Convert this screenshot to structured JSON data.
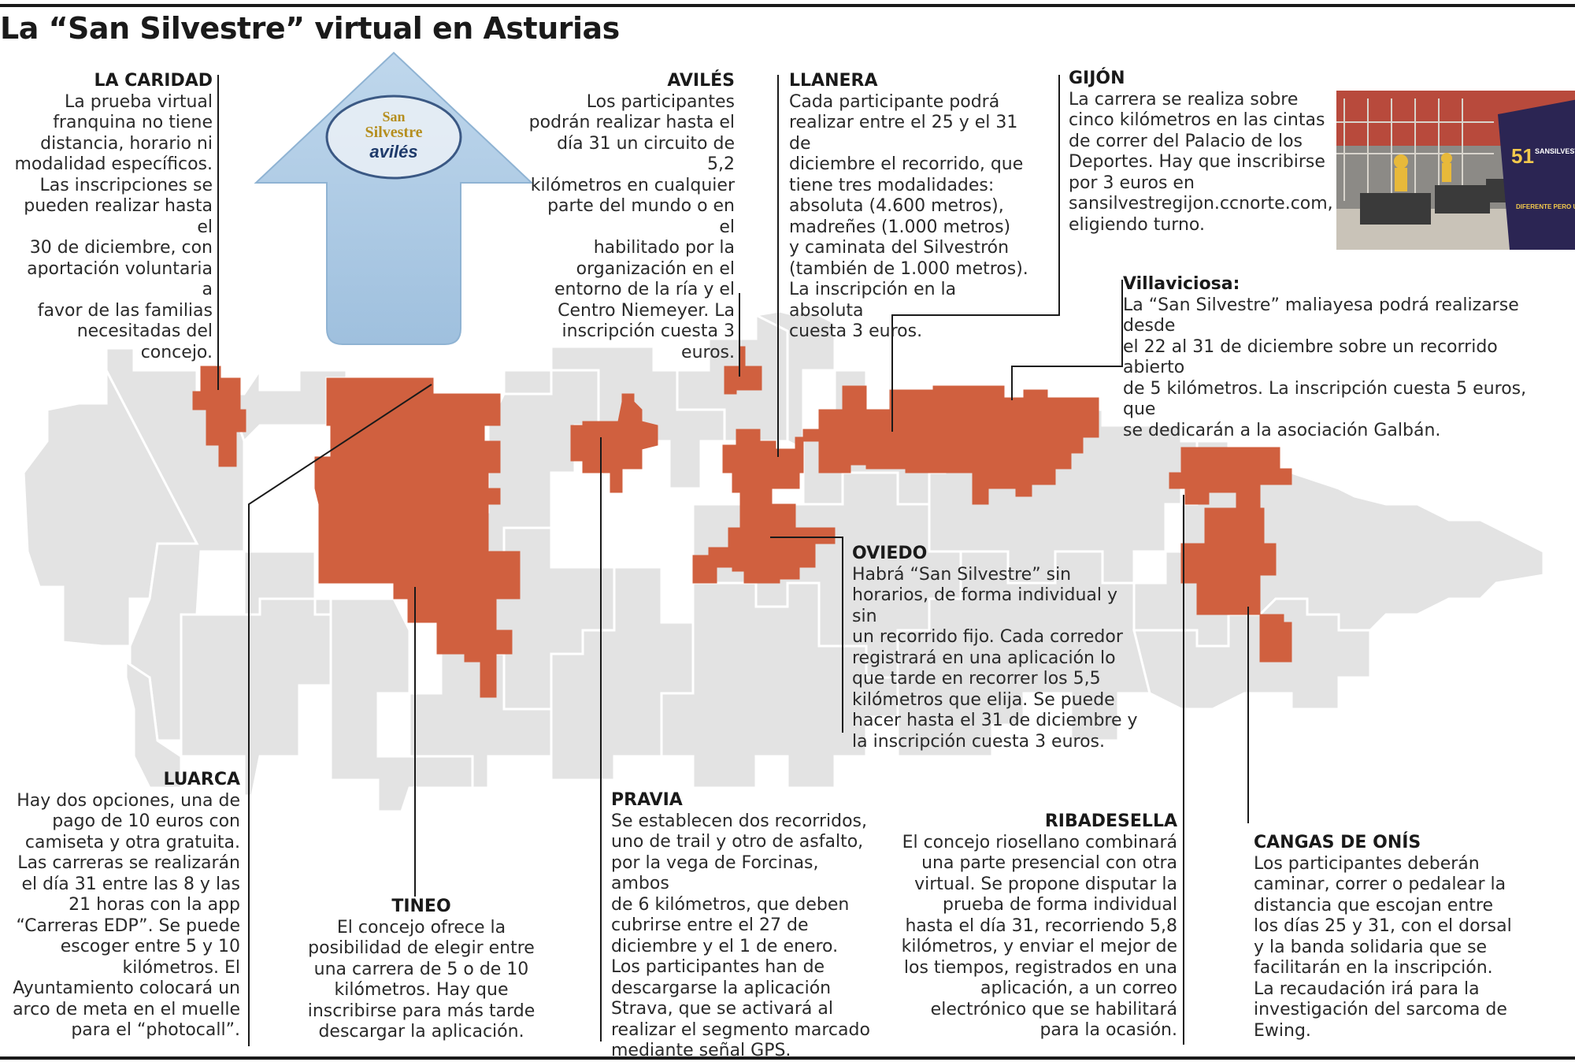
{
  "title": "La “San Silvestre” virtual en Asturias",
  "colors": {
    "highlight": "#D0603F",
    "municipality": "#E3E3E3",
    "border": "#FFFFFF",
    "line": "#1a1a1a"
  },
  "sign": {
    "line1": "San",
    "line2": "Silvestre",
    "line3": "avilés"
  },
  "photo": {
    "number": "51",
    "word": "SANSILVESTRE",
    "slogan": "DIFERENTE PERO ÚNICA"
  },
  "callouts": {
    "la_caridad": {
      "name": "LA CARIDAD",
      "text": "La prueba virtual\nfranquina no tiene\ndistancia, horario ni\nmodalidad específicos.\nLas inscripciones se\npueden realizar hasta el\n30 de diciembre, con\naportación voluntaria a\nfavor de las familias\nnecesitadas del concejo."
    },
    "aviles": {
      "name": "AVILÉS",
      "text": "Los participantes\npodrán realizar hasta el\ndía 31 un circuito de 5,2\nkilómetros en cualquier\nparte del mundo o en el\nhabilitado por la\norganización en el\nentorno de la ría y el\nCentro Niemeyer. La\ninscripción cuesta 3\neuros."
    },
    "llanera": {
      "name": "LLANERA",
      "text": "Cada participante podrá\nrealizar entre el 25 y el 31 de\ndiciembre el recorrido, que\ntiene tres modalidades:\nabsoluta (4.600 metros),\nmadreñes (1.000 metros)\ny caminata del Silvestrón\n(también de 1.000 metros).\nLa inscripción en la absoluta\ncuesta 3 euros."
    },
    "gijon": {
      "name": "GIJÓN",
      "text": "La carrera se realiza sobre\ncinco kilómetros en las cintas\nde correr del Palacio de los\nDeportes. Hay que inscribirse\npor 3 euros en\nsansilvestregijon.ccnorte.com,\neligiendo turno."
    },
    "villaviciosa": {
      "name": "Villaviciosa:",
      "text": "La “San Silvestre” maliayesa podrá realizarse desde\nel 22 al 31 de diciembre sobre un recorrido abierto\nde 5 kilómetros. La inscripción cuesta 5 euros, que\nse dedicarán a la asociación Galbán."
    },
    "oviedo": {
      "name": "OVIEDO",
      "text": "Habrá “San Silvestre” sin\nhorarios, de forma individual y sin\nun recorrido fijo. Cada corredor\nregistrará en una aplicación lo\nque tarde en recorrer los 5,5\nkilómetros que elija. Se puede\nhacer hasta el 31 de diciembre y\nla inscripción cuesta 3 euros."
    },
    "luarca": {
      "name": "LUARCA",
      "text": "Hay dos opciones, una de\npago de 10 euros con\ncamiseta y otra gratuita.\nLas carreras se realizarán\nel día 31 entre las 8 y las\n21 horas con la app\n“Carreras EDP”. Se puede\nescoger entre 5 y 10\nkilómetros. El\nAyuntamiento colocará un\narco de meta en el muelle\npara el “photocall”."
    },
    "tineo": {
      "name": "TINEO",
      "text": "El concejo ofrece la\nposibilidad de elegir entre\nuna carrera de 5 o de 10\nkilómetros. Hay que\ninscribirse para más tarde\ndescargar la aplicación."
    },
    "pravia": {
      "name": "PRAVIA",
      "text": "Se establecen dos recorridos,\nuno de trail y otro de asfalto,\npor la vega de Forcinas, ambos\nde 6 kilómetros, que deben\ncubrirse entre el 27 de\ndiciembre y el 1 de enero.\nLos participantes han de\ndescargarse la aplicación\nStrava, que se activará al\nrealizar el segmento marcado\nmediante señal GPS."
    },
    "ribadesella": {
      "name": "RIBADESELLA",
      "text": "El concejo riosellano combinará\nuna parte presencial con otra\nvirtual. Se propone disputar la\nprueba de forma individual\nhasta el día 31, recorriendo 5,8\nkilómetros, y enviar el mejor de\nlos tiempos, registrados en una\naplicación, a un correo\nelectrónico que se habilitará\npara la ocasión."
    },
    "cangas": {
      "name": "CANGAS DE ONÍS",
      "text": "Los participantes deberán\ncaminar, correr o pedalear la\ndistancia que escojan entre\nlos días 25 y 31, con el dorsal\ny la banda solidaria que se\nfacilitarán en la inscripción.\nLa recaudación irá para la\ninvestigación del sarcoma de\nEwing."
    }
  }
}
